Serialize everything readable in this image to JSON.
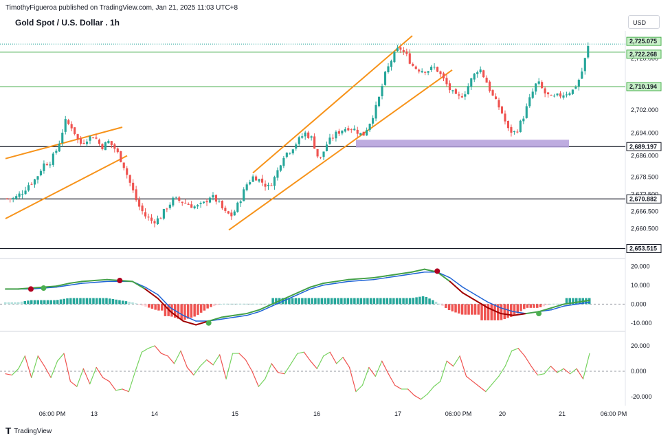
{
  "header": {
    "publisher": "TimothyFigueroa published on TradingView.com, Jan 21, 2025 11:03 UTC+8",
    "title": "Gold Spot / U.S. Dollar . 1h",
    "currency": "USD",
    "logo_text": "TradingView"
  },
  "colors": {
    "up": "#26a69a",
    "down": "#ef5350",
    "channel": "#f7931a",
    "zone": "#b39ddb",
    "green_line": "#4caf50",
    "line_black": "#131722",
    "macd_fast": "#43a047",
    "macd_slow": "#1e63d6",
    "macd_bear": "#a00000",
    "osc_up": "#76d35f",
    "osc_down": "#ef5350"
  },
  "chart_data": [
    {
      "type": "candlestick",
      "title": "Gold Spot / U.S. Dollar . 1h",
      "x_tick_labels": [
        "06:00 PM",
        "13",
        "14",
        "15",
        "16",
        "17",
        "06:00 PM",
        "20",
        "21",
        "06:00 PM"
      ],
      "y_tick_labels": [
        "2,720.000",
        "2,702.000",
        "2,694.000",
        "2,686.000",
        "2,678.500",
        "2,672.500",
        "2,666.500",
        "2,660.500",
        "2,653.500"
      ],
      "ylim": [
        2651,
        2728
      ],
      "price_labels": [
        {
          "value": "2,725.075",
          "style": "green"
        },
        {
          "value": "2,722.268",
          "style": "green"
        },
        {
          "value": "2,710.194",
          "style": "green"
        },
        {
          "value": "2,689.197",
          "style": "black"
        },
        {
          "value": "2,670.882",
          "style": "black"
        },
        {
          "value": "2,653.515",
          "style": "black"
        }
      ],
      "horizontal_levels": [
        2722.268,
        2710.194,
        2689.197,
        2670.882,
        2653.515
      ],
      "close_path": [
        2671,
        2671,
        2673,
        2676,
        2678,
        2683,
        2684,
        2689,
        2698,
        2696,
        2690,
        2692,
        2693,
        2689,
        2691,
        2688,
        2683,
        2676,
        2669,
        2665,
        2663,
        2664,
        2668,
        2671,
        2670,
        2669,
        2668,
        2669,
        2672,
        2670,
        2666,
        2665,
        2670,
        2676,
        2679,
        2677,
        2675,
        2679,
        2686,
        2688,
        2691,
        2694,
        2692,
        2684,
        2690,
        2693,
        2695,
        2696,
        2695,
        2693,
        2698,
        2704,
        2714,
        2720,
        2724,
        2721,
        2717,
        2716,
        2716,
        2717,
        2713,
        2709,
        2706,
        2708,
        2713,
        2717,
        2712,
        2706,
        2702,
        2695,
        2694,
        2699,
        2706,
        2712,
        2708,
        2706,
        2707,
        2708,
        2709,
        2714,
        2724
      ],
      "candle_count": 190
    },
    {
      "type": "line",
      "title": "",
      "y_tick_labels": [
        "20.000",
        "10.000",
        "0.000",
        "-10.000"
      ],
      "ylim": [
        -13,
        22
      ],
      "series": [
        {
          "values": [
            8,
            8,
            8.5,
            9,
            9.5,
            11,
            12,
            12.5,
            13,
            12.5,
            12,
            8,
            3,
            -4,
            -9,
            -11,
            -9,
            -7,
            -6,
            -5,
            -3,
            0,
            3,
            6,
            9,
            11,
            12,
            13,
            13.5,
            14,
            15,
            16,
            17,
            18.5,
            17,
            12,
            6,
            2,
            -2,
            -5,
            -6,
            -5,
            -4,
            -2,
            0,
            1,
            2
          ]
        },
        {
          "values": [
            8,
            8,
            8,
            8.5,
            9,
            10,
            11,
            11.5,
            12,
            12,
            12,
            9,
            5,
            -2,
            -6,
            -9,
            -9,
            -8,
            -7,
            -6,
            -4,
            -1,
            2,
            5,
            8,
            10,
            11,
            12,
            12.5,
            13,
            14,
            15,
            16,
            17,
            17,
            14,
            9,
            5,
            1,
            -2,
            -4,
            -5,
            -4,
            -3,
            -1,
            0,
            1
          ]
        }
      ],
      "signal_markers": [
        {
          "x": 2,
          "y": 8,
          "type": "bearish"
        },
        {
          "x": 3,
          "y": 8.5,
          "type": "bullish"
        },
        {
          "x": 9,
          "y": 12.5,
          "type": "bearish"
        },
        {
          "x": 16,
          "y": -10,
          "type": "bullish"
        },
        {
          "x": 34,
          "y": 17.5,
          "type": "bearish"
        },
        {
          "x": 42,
          "y": -5,
          "type": "bullish"
        }
      ]
    },
    {
      "type": "line",
      "title": "",
      "y_tick_labels": [
        "20.000",
        "0.000",
        "-20.000"
      ],
      "ylim": [
        -27,
        27
      ],
      "series": [
        {
          "values": [
            -2,
            -3,
            2,
            12,
            -5,
            12,
            4,
            -5,
            8,
            14,
            -8,
            -12,
            2,
            -10,
            3,
            -5,
            -8,
            -15,
            -14,
            -16,
            0,
            15,
            18,
            20,
            14,
            12,
            6,
            16,
            3,
            -3,
            4,
            9,
            5,
            13,
            -6,
            14,
            14,
            9,
            0,
            -12,
            -6,
            6,
            -1,
            -2,
            6,
            14,
            15,
            8,
            2,
            12,
            15,
            6,
            11,
            3,
            -16,
            -11,
            3,
            -4,
            8,
            -2,
            -11,
            -14,
            -14,
            -19,
            -22,
            -18,
            -12,
            -8,
            8,
            4,
            12,
            -4,
            -8,
            -12,
            -16,
            -10,
            -4,
            4,
            16,
            18,
            12,
            4,
            -3,
            -2,
            4,
            -1,
            2,
            -2,
            2,
            -6,
            14
          ]
        }
      ]
    }
  ]
}
